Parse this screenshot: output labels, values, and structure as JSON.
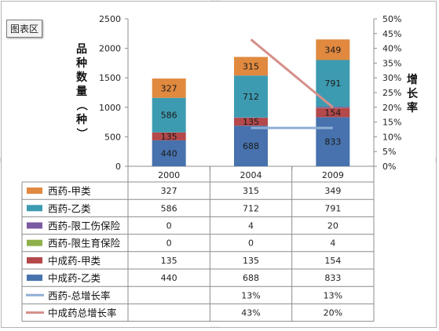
{
  "chart_area_label": "图表区",
  "chart_data": {
    "type": "bar",
    "stacked": true,
    "categories": [
      "2000",
      "2004",
      "2009"
    ],
    "ylabel": "品种数量（种）",
    "y2label": "增长率",
    "ylim": [
      0,
      2500
    ],
    "yticks": [
      0,
      500,
      1000,
      1500,
      2000,
      2500
    ],
    "y2lim": [
      0,
      50
    ],
    "y2ticks": [
      "0%",
      "5%",
      "10%",
      "15%",
      "20%",
      "25%",
      "30%",
      "35%",
      "40%",
      "45%",
      "50%"
    ],
    "grid": false,
    "legend": "data-table",
    "series": [
      {
        "name": "西药-甲类",
        "type": "bar",
        "values": [
          327,
          315,
          349
        ],
        "table": [
          "327",
          "315",
          "349"
        ],
        "color": "#e0893f"
      },
      {
        "name": "西药-乙类",
        "type": "bar",
        "values": [
          586,
          712,
          791
        ],
        "table": [
          "586",
          "712",
          "791"
        ],
        "color": "#3d9bb1"
      },
      {
        "name": "西药-限工伤保险",
        "type": "bar",
        "values": [
          0,
          4,
          20
        ],
        "table": [
          "0",
          "4",
          "20"
        ],
        "color": "#7a5aa1"
      },
      {
        "name": "西药-限生育保险",
        "type": "bar",
        "values": [
          0,
          0,
          4
        ],
        "table": [
          "0",
          "0",
          "4"
        ],
        "color": "#8fb04a"
      },
      {
        "name": "中成药-甲类",
        "type": "bar",
        "values": [
          135,
          135,
          154
        ],
        "table": [
          "135",
          "135",
          "154"
        ],
        "color": "#b4484a"
      },
      {
        "name": "中成药-乙类",
        "type": "bar",
        "values": [
          440,
          688,
          833
        ],
        "table": [
          "440",
          "688",
          "833"
        ],
        "color": "#4772ad"
      },
      {
        "name": "西药-总增长率",
        "type": "line",
        "axis": "right",
        "values": [
          null,
          13,
          13
        ],
        "table": [
          "",
          "13%",
          "13%"
        ],
        "color": "#8eaed4"
      },
      {
        "name": "中成药总增长率",
        "type": "line",
        "axis": "right",
        "values": [
          null,
          43,
          20
        ],
        "table": [
          "",
          "43%",
          "20%"
        ],
        "color": "#d6908b"
      }
    ]
  }
}
